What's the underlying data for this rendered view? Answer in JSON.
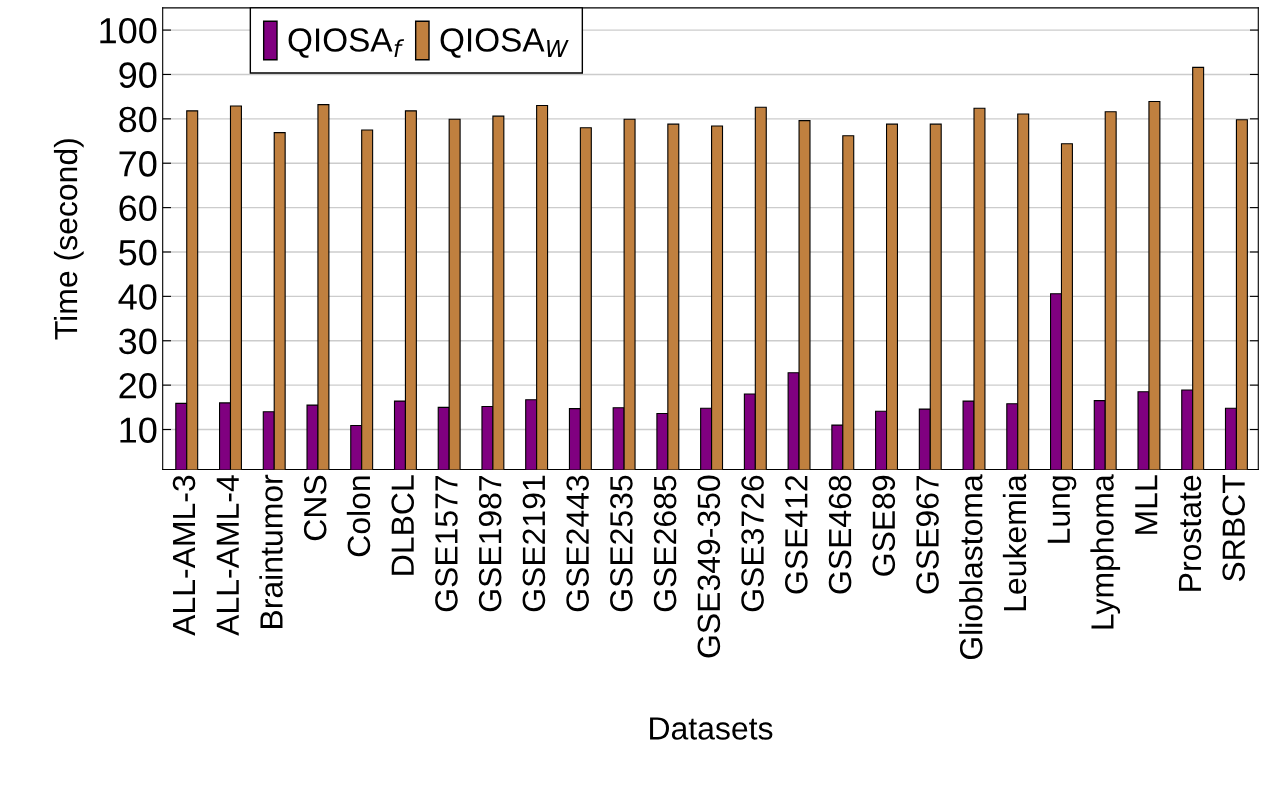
{
  "chart_data": {
    "type": "bar",
    "xlabel": "Datasets",
    "ylabel": "Time (second)",
    "categories": [
      "ALL-AML-3",
      "ALL-AML-4",
      "Braintumor",
      "CNS",
      "Colon",
      "DLBCL",
      "GSE1577",
      "GSE1987",
      "GSE2191",
      "GSE2443",
      "GSE2535",
      "GSE2685",
      "GSE349-350",
      "GSE3726",
      "GSE412",
      "GSE468",
      "GSE89",
      "GSE967",
      "Glioblastoma",
      "Leukemia",
      "Lung",
      "Lymphoma",
      "MLL",
      "Prostate",
      "SRBCT"
    ],
    "series": [
      {
        "name": "QIOSA$_{f}$",
        "color": "#800080",
        "values": [
          15.9,
          16.0,
          14.0,
          15.5,
          10.9,
          16.4,
          15.0,
          15.2,
          16.7,
          14.7,
          14.9,
          13.6,
          14.8,
          18.0,
          22.8,
          11.0,
          14.1,
          14.6,
          16.4,
          15.8,
          40.6,
          16.5,
          18.5,
          18.9,
          14.8
        ]
      },
      {
        "name": "QIOSA$_{W}$",
        "color": "#c0803f",
        "values": [
          81.8,
          82.9,
          76.9,
          83.2,
          77.5,
          81.8,
          79.9,
          80.6,
          83.0,
          78.0,
          79.9,
          78.8,
          78.4,
          82.6,
          79.6,
          76.2,
          78.8,
          78.8,
          82.4,
          81.1,
          74.4,
          81.6,
          83.9,
          91.6,
          79.8
        ]
      }
    ],
    "ylim": [
      1,
      105
    ],
    "yticks": [
      10,
      20,
      30,
      40,
      50,
      60,
      70,
      80,
      90,
      100
    ],
    "grid": "y",
    "legend": "top left"
  }
}
